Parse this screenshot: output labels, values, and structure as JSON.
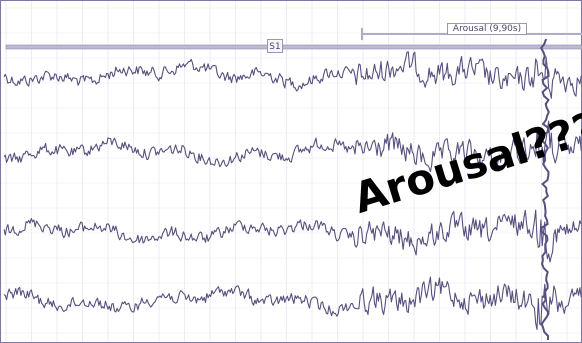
{
  "markers": {
    "stage_label": "S1",
    "event_label": "Arousal (9,90s)"
  },
  "annotation": {
    "text": "Arousal???"
  },
  "colors": {
    "trace": "#56507e",
    "grid": "#e9e8f2",
    "border": "#7c78a6",
    "band": "#bcb9d3"
  },
  "channels": [
    {
      "id": "ch1"
    },
    {
      "id": "ch2"
    },
    {
      "id": "ch3"
    },
    {
      "id": "ch4"
    }
  ]
}
